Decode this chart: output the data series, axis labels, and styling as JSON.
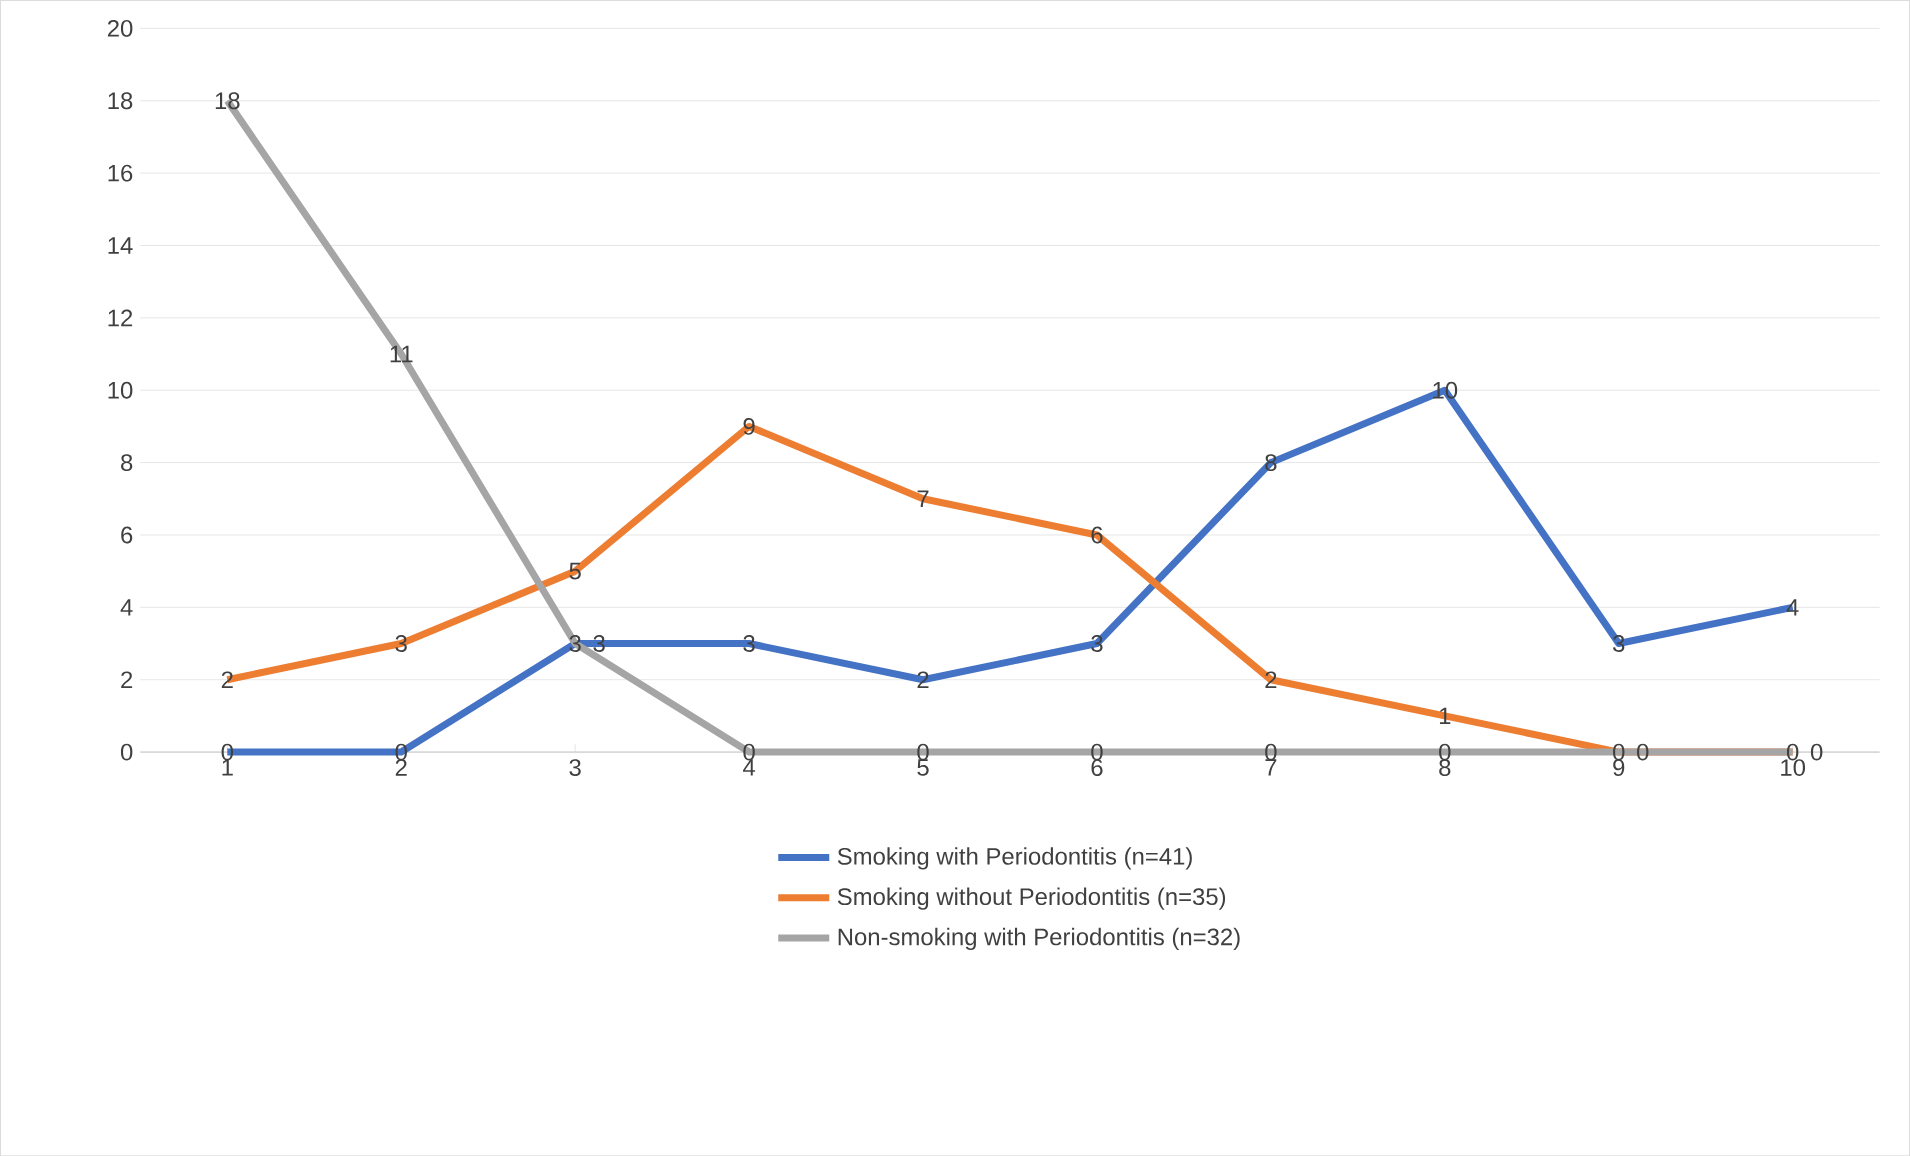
{
  "chart_data": {
    "type": "line",
    "categories": [
      "1",
      "2",
      "3",
      "4",
      "5",
      "6",
      "7",
      "8",
      "9",
      "10"
    ],
    "series": [
      {
        "name": "Smoking with Periodontitis (n=41)",
        "color": "#4472c4",
        "values": [
          0,
          0,
          3,
          3,
          2,
          3,
          8,
          10,
          3,
          4
        ]
      },
      {
        "name": "Smoking without Periodontitis (n=35)",
        "color": "#ed7d31",
        "values": [
          2,
          3,
          5,
          9,
          7,
          6,
          2,
          1,
          0,
          0
        ]
      },
      {
        "name": "Non-smoking with Periodontitis (n=32)",
        "color": "#a5a5a5",
        "values": [
          18,
          11,
          3,
          0,
          0,
          0,
          0,
          0,
          0,
          0
        ]
      }
    ],
    "ylim": [
      0,
      20
    ],
    "yticks": [
      0,
      2,
      4,
      6,
      8,
      10,
      12,
      14,
      16,
      18,
      20
    ],
    "grid": "y",
    "legend": "bottom",
    "data_labels": true,
    "marker": "none",
    "line_style": "solid"
  }
}
